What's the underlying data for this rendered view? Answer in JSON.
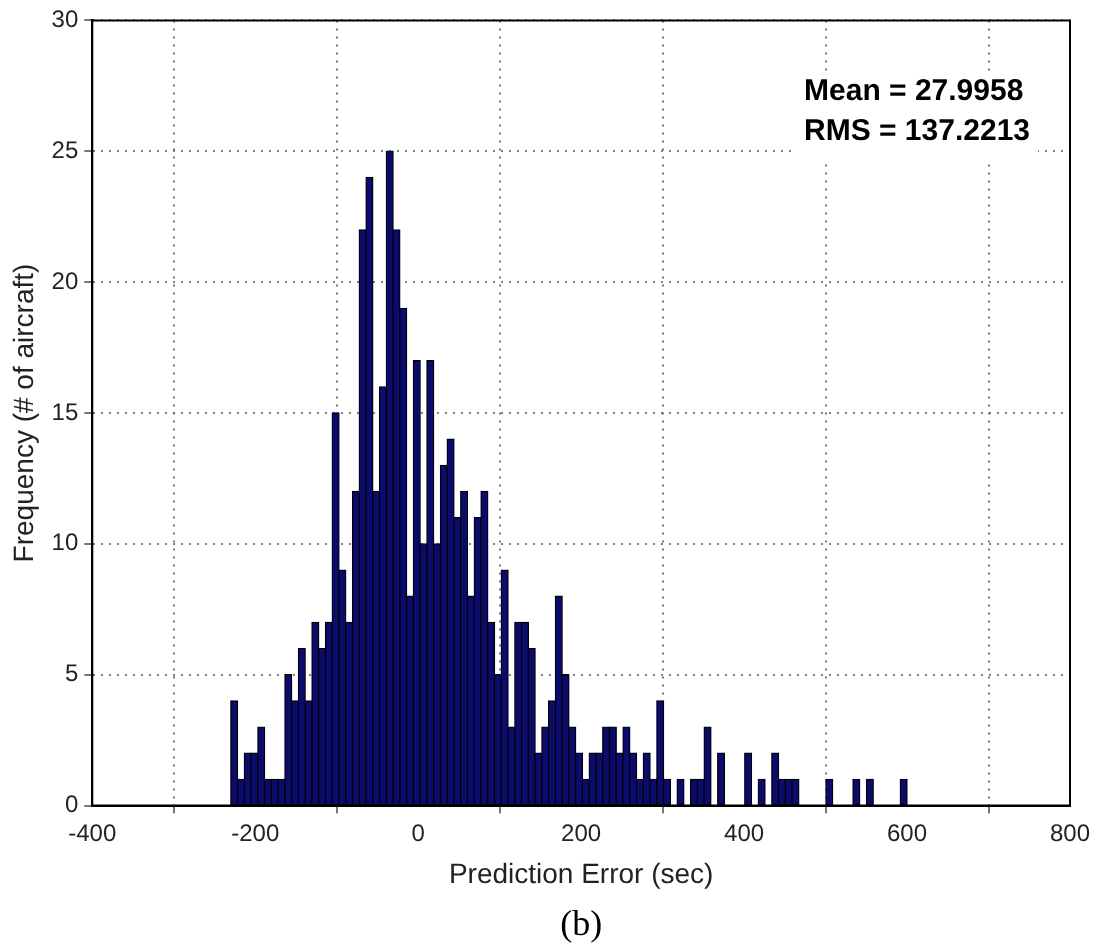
{
  "chart_data": {
    "type": "histogram",
    "xlabel": "Prediction Error (sec)",
    "ylabel": "Frequency (# of aircraft)",
    "bins": [
      -230,
      -221.7,
      -213.4,
      -205.1,
      -196.8,
      -188.5,
      -180.2,
      -171.9,
      -163.6,
      -155.3,
      -147,
      -138.7,
      -130.4,
      -122.1,
      -113.8,
      -105.5,
      -97.2,
      -88.9,
      -80.6,
      -72.3,
      -64,
      -55.7,
      -47.4,
      -39.1,
      -30.8,
      -22.5,
      -14.2,
      -5.9,
      2.4,
      10.7,
      19,
      27.3,
      35.6,
      43.9,
      52.2,
      60.5,
      68.8,
      77.1,
      85.4,
      93.7,
      102,
      110.3,
      118.6,
      126.9,
      135.2,
      143.5,
      151.8,
      160.1,
      168.4,
      176.7,
      185,
      193.3,
      201.6,
      209.9,
      218.2,
      226.5,
      234.8,
      243.1,
      251.4,
      259.7,
      268,
      276.3,
      284.6,
      292.9,
      301.2,
      309.5,
      317.8,
      326.1,
      334.4,
      342.7,
      351,
      359.3,
      367.6,
      375.9,
      384.2,
      392.5,
      400.8,
      409.1,
      417.4,
      425.7,
      434,
      442.3,
      450.6,
      458.9,
      467.2,
      475.5,
      483.8,
      492.1,
      500.4,
      508.7,
      517,
      525.3,
      533.6,
      541.9,
      550.2,
      558.5,
      566.8,
      575.1,
      583.4,
      591.7,
      600
    ],
    "values": [
      4,
      1,
      2,
      2,
      3,
      1,
      1,
      1,
      5,
      4,
      6,
      4,
      7,
      6,
      7,
      15,
      9,
      7,
      12,
      22,
      24,
      12,
      16,
      25,
      22,
      19,
      8,
      17,
      10,
      17,
      10,
      13,
      14,
      11,
      12,
      8,
      11,
      12,
      7,
      5,
      9,
      3,
      7,
      7,
      6,
      2,
      3,
      4,
      8,
      5,
      3,
      2,
      1,
      2,
      2,
      3,
      3,
      2,
      3,
      2,
      1,
      2,
      1,
      4,
      1,
      0,
      1,
      0,
      1,
      1,
      3,
      0,
      2,
      0,
      0,
      0,
      2,
      0,
      1,
      0,
      2,
      1,
      1,
      1,
      0,
      0,
      0,
      0,
      1,
      0,
      0,
      0,
      1,
      0,
      1,
      0,
      0,
      0,
      0,
      1
    ],
    "color": "#0b0b6b",
    "xlim": [
      -400,
      800
    ],
    "xticks": [
      -400,
      -200,
      0,
      200,
      400,
      600,
      800
    ],
    "ylim": [
      0,
      30
    ],
    "yticks": [
      0,
      5,
      10,
      15,
      20,
      25,
      30
    ],
    "grid": true,
    "annotations": [
      "Mean = 27.9958\nRMS = 137.2213",
      "(b)"
    ]
  }
}
